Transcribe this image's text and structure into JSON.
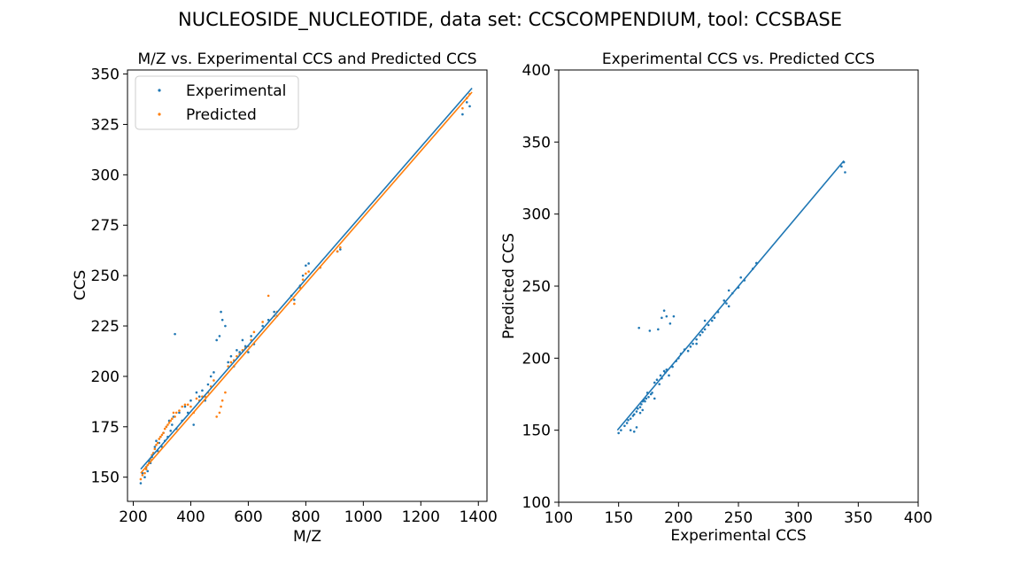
{
  "figure": {
    "suptitle": "NUCLEOSIDE_NUCLEOTIDE, data set: CCSCOMPENDIUM, tool: CCSBASE"
  },
  "colors": {
    "experimental": "#1f77b4",
    "predicted": "#ff7f0e"
  },
  "chart_data": [
    {
      "type": "scatter",
      "title": "M/Z vs. Experimental CCS and Predicted CCS",
      "xlabel": "M/Z",
      "ylabel": "CCS",
      "xlim": [
        180,
        1430
      ],
      "ylim": [
        138,
        352
      ],
      "xticks": [
        200,
        400,
        600,
        800,
        1000,
        1200,
        1400
      ],
      "yticks": [
        150,
        175,
        200,
        225,
        250,
        275,
        300,
        325,
        350
      ],
      "legend": {
        "placement": "top-left",
        "entries": [
          "Experimental",
          "Predicted"
        ]
      },
      "series": [
        {
          "name": "Experimental",
          "color": "#1f77b4",
          "points": [
            [
              226,
              147
            ],
            [
              232,
              152
            ],
            [
              240,
              150
            ],
            [
              245,
              155
            ],
            [
              250,
              153
            ],
            [
              255,
              158
            ],
            [
              260,
              157
            ],
            [
              265,
              160
            ],
            [
              270,
              162
            ],
            [
              275,
              165
            ],
            [
              280,
              168
            ],
            [
              285,
              163
            ],
            [
              290,
              167
            ],
            [
              295,
              170
            ],
            [
              300,
              165
            ],
            [
              305,
              172
            ],
            [
              310,
              168
            ],
            [
              315,
              175
            ],
            [
              320,
              170
            ],
            [
              325,
              178
            ],
            [
              330,
              173
            ],
            [
              335,
              176
            ],
            [
              340,
              180
            ],
            [
              345,
              221
            ],
            [
              350,
              174
            ],
            [
              360,
              182
            ],
            [
              370,
              178
            ],
            [
              380,
              185
            ],
            [
              390,
              182
            ],
            [
              400,
              188
            ],
            [
              410,
              176
            ],
            [
              420,
              192
            ],
            [
              430,
              190
            ],
            [
              440,
              193
            ],
            [
              450,
              188
            ],
            [
              460,
              196
            ],
            [
              470,
              200
            ],
            [
              480,
              202
            ],
            [
              490,
              218
            ],
            [
              500,
              220
            ],
            [
              505,
              232
            ],
            [
              510,
              228
            ],
            [
              520,
              225
            ],
            [
              530,
              207
            ],
            [
              540,
              210
            ],
            [
              550,
              205
            ],
            [
              560,
              213
            ],
            [
              570,
              212
            ],
            [
              580,
              218
            ],
            [
              590,
              215
            ],
            [
              600,
              212
            ],
            [
              610,
              220
            ],
            [
              620,
              216
            ],
            [
              650,
              225
            ],
            [
              670,
              228
            ],
            [
              690,
              232
            ],
            [
              700,
              230
            ],
            [
              750,
              240
            ],
            [
              760,
              238
            ],
            [
              780,
              245
            ],
            [
              790,
              250
            ],
            [
              800,
              255
            ],
            [
              810,
              256
            ],
            [
              850,
              254
            ],
            [
              910,
              262
            ],
            [
              920,
              263
            ],
            [
              1345,
              330
            ],
            [
              1360,
              336
            ],
            [
              1370,
              334
            ]
          ]
        },
        {
          "name": "Predicted",
          "color": "#ff7f0e",
          "points": [
            [
              226,
              149
            ],
            [
              232,
              151
            ],
            [
              240,
              152
            ],
            [
              245,
              154
            ],
            [
              250,
              156
            ],
            [
              255,
              157
            ],
            [
              260,
              159
            ],
            [
              265,
              161
            ],
            [
              270,
              162
            ],
            [
              275,
              164
            ],
            [
              280,
              166
            ],
            [
              285,
              167
            ],
            [
              290,
              169
            ],
            [
              295,
              170
            ],
            [
              300,
              171
            ],
            [
              305,
              172
            ],
            [
              310,
              174
            ],
            [
              315,
              175
            ],
            [
              320,
              176
            ],
            [
              325,
              177
            ],
            [
              330,
              178
            ],
            [
              335,
              179
            ],
            [
              340,
              182
            ],
            [
              345,
              180
            ],
            [
              350,
              182
            ],
            [
              360,
              183
            ],
            [
              370,
              185
            ],
            [
              380,
              186
            ],
            [
              390,
              186
            ],
            [
              400,
              185
            ],
            [
              410,
              182
            ],
            [
              420,
              189
            ],
            [
              430,
              188
            ],
            [
              440,
              190
            ],
            [
              450,
              190
            ],
            [
              460,
              192
            ],
            [
              470,
              195
            ],
            [
              480,
              198
            ],
            [
              490,
              180
            ],
            [
              500,
              182
            ],
            [
              505,
              185
            ],
            [
              510,
              188
            ],
            [
              520,
              192
            ],
            [
              530,
              205
            ],
            [
              540,
              207
            ],
            [
              550,
              208
            ],
            [
              560,
              210
            ],
            [
              570,
              211
            ],
            [
              580,
              213
            ],
            [
              590,
              214
            ],
            [
              600,
              215
            ],
            [
              610,
              218
            ],
            [
              620,
              222
            ],
            [
              650,
              227
            ],
            [
              670,
              240
            ],
            [
              690,
              230
            ],
            [
              700,
              232
            ],
            [
              750,
              238
            ],
            [
              760,
              236
            ],
            [
              780,
              244
            ],
            [
              790,
              248
            ],
            [
              800,
              251
            ],
            [
              810,
              252
            ],
            [
              850,
              254
            ],
            [
              910,
              262
            ],
            [
              920,
              264
            ],
            [
              1345,
              333
            ],
            [
              1360,
              338
            ],
            [
              1370,
              340
            ]
          ]
        }
      ],
      "fit_lines": [
        {
          "series": "Experimental",
          "x": [
            226,
            1378
          ],
          "y": [
            154,
            343
          ]
        },
        {
          "series": "Predicted",
          "x": [
            226,
            1378
          ],
          "y": [
            152,
            341
          ]
        }
      ]
    },
    {
      "type": "scatter",
      "title": "Experimental CCS vs. Predicted CCS",
      "xlabel": "Experimental CCS",
      "ylabel": "Predicted CCS",
      "xlim": [
        100,
        400
      ],
      "ylim": [
        100,
        400
      ],
      "xticks": [
        100,
        150,
        200,
        250,
        300,
        350,
        400
      ],
      "yticks": [
        100,
        150,
        200,
        250,
        300,
        350,
        400
      ],
      "series": [
        {
          "name": "",
          "color": "#1f77b4",
          "points": [
            [
              150,
              148
            ],
            [
              152,
              150
            ],
            [
              155,
              153
            ],
            [
              157,
              155
            ],
            [
              158,
              157
            ],
            [
              160,
              158
            ],
            [
              162,
              160
            ],
            [
              163,
              161
            ],
            [
              165,
              163
            ],
            [
              166,
              165
            ],
            [
              168,
              166
            ],
            [
              169,
              168
            ],
            [
              170,
              170
            ],
            [
              171,
              171
            ],
            [
              172,
              170
            ],
            [
              173,
              172
            ],
            [
              175,
              173
            ],
            [
              177,
              175
            ],
            [
              160,
              150
            ],
            [
              163,
              149
            ],
            [
              165,
              152
            ],
            [
              170,
              164
            ],
            [
              168,
              162
            ],
            [
              167,
              221
            ],
            [
              176,
              219
            ],
            [
              183,
              220
            ],
            [
              186,
              228
            ],
            [
              188,
              233
            ],
            [
              190,
              229
            ],
            [
              196,
              229
            ],
            [
              193,
              224
            ],
            [
              180,
              183
            ],
            [
              182,
              185
            ],
            [
              185,
              188
            ],
            [
              188,
              191
            ],
            [
              190,
              192
            ],
            [
              192,
              188
            ],
            [
              195,
              194
            ],
            [
              198,
              198
            ],
            [
              200,
              200
            ],
            [
              202,
              203
            ],
            [
              205,
              206
            ],
            [
              208,
              205
            ],
            [
              210,
              208
            ],
            [
              212,
              210
            ],
            [
              215,
              213
            ],
            [
              218,
              216
            ],
            [
              220,
              218
            ],
            [
              222,
              220
            ],
            [
              225,
              223
            ],
            [
              228,
              226
            ],
            [
              230,
              228
            ],
            [
              233,
              232
            ],
            [
              238,
              240
            ],
            [
              240,
              238
            ],
            [
              242,
              236
            ],
            [
              245,
              245
            ],
            [
              250,
              249
            ],
            [
              255,
              254
            ],
            [
              262,
              262
            ],
            [
              265,
              266
            ],
            [
              178,
              176
            ],
            [
              180,
              172
            ],
            [
              184,
              182
            ],
            [
              174,
              176
            ],
            [
              186,
              186
            ],
            [
              189,
              190
            ],
            [
              336,
              333
            ],
            [
              338,
              336
            ],
            [
              339,
              329
            ],
            [
              242,
              247
            ],
            [
              252,
              256
            ],
            [
              222,
              226
            ],
            [
              215,
              210
            ]
          ]
        }
      ],
      "fit_lines": [
        {
          "series": "",
          "x": [
            149,
            338
          ],
          "y": [
            150,
            337
          ]
        }
      ]
    }
  ]
}
